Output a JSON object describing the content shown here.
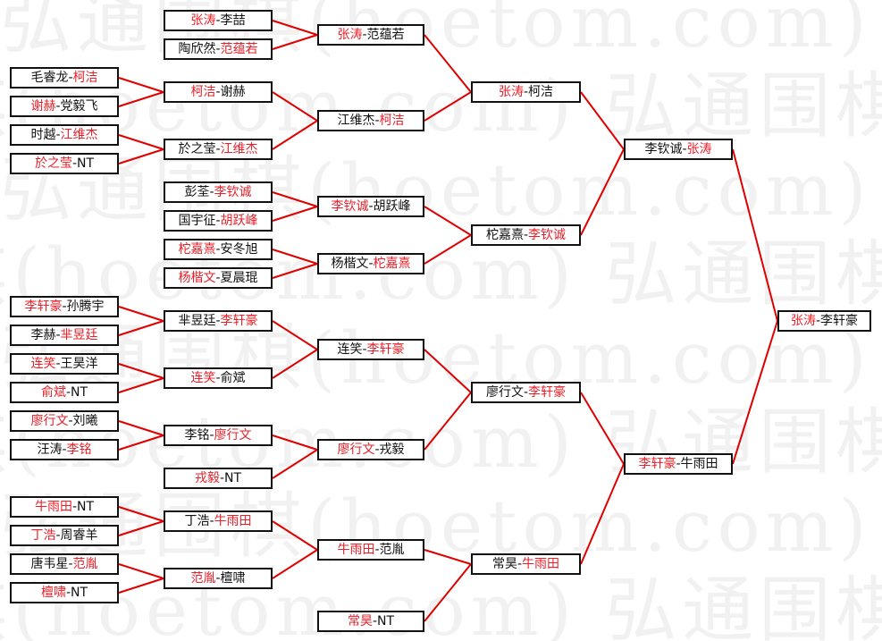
{
  "watermark": "弘通围棋(hoetom.com)",
  "colors": {
    "winner": "#e8202a",
    "loser": "#111111",
    "line": "#e00000"
  },
  "separator": "-",
  "rounds": [
    {
      "matches": [
        {
          "players": [
            {
              "name": "毛睿龙",
              "winner": false
            },
            {
              "name": "柯洁",
              "winner": true
            }
          ]
        },
        {
          "players": [
            {
              "name": "谢赫",
              "winner": true
            },
            {
              "name": "党毅飞",
              "winner": false
            }
          ]
        },
        {
          "players": [
            {
              "name": "时越",
              "winner": false
            },
            {
              "name": "江维杰",
              "winner": true
            }
          ]
        },
        {
          "players": [
            {
              "name": "於之莹",
              "winner": true
            },
            {
              "name": "NT",
              "winner": false
            }
          ]
        },
        {
          "players": [
            {
              "name": "李轩豪",
              "winner": true
            },
            {
              "name": "孙腾宇",
              "winner": false
            }
          ]
        },
        {
          "players": [
            {
              "name": "李赫",
              "winner": false
            },
            {
              "name": "芈昱廷",
              "winner": true
            }
          ]
        },
        {
          "players": [
            {
              "name": "连笑",
              "winner": true
            },
            {
              "name": "王昊洋",
              "winner": false
            }
          ]
        },
        {
          "players": [
            {
              "name": "俞斌",
              "winner": true
            },
            {
              "name": "NT",
              "winner": false
            }
          ]
        },
        {
          "players": [
            {
              "name": "廖行文",
              "winner": true
            },
            {
              "name": "刘曦",
              "winner": false
            }
          ]
        },
        {
          "players": [
            {
              "name": "汪涛",
              "winner": false
            },
            {
              "name": "李铭",
              "winner": true
            }
          ]
        },
        {
          "players": [
            {
              "name": "牛雨田",
              "winner": true
            },
            {
              "name": "NT",
              "winner": false
            }
          ]
        },
        {
          "players": [
            {
              "name": "丁浩",
              "winner": true
            },
            {
              "name": "周睿羊",
              "winner": false
            }
          ]
        },
        {
          "players": [
            {
              "name": "唐韦星",
              "winner": false
            },
            {
              "name": "范胤",
              "winner": true
            }
          ]
        },
        {
          "players": [
            {
              "name": "檀啸",
              "winner": true
            },
            {
              "name": "NT",
              "winner": false
            }
          ]
        }
      ]
    },
    {
      "matches": [
        {
          "players": [
            {
              "name": "张涛",
              "winner": true
            },
            {
              "name": "李喆",
              "winner": false
            }
          ]
        },
        {
          "players": [
            {
              "name": "陶欣然",
              "winner": false
            },
            {
              "name": "范蕴若",
              "winner": true
            }
          ]
        },
        {
          "players": [
            {
              "name": "柯洁",
              "winner": true
            },
            {
              "name": "谢赫",
              "winner": false
            }
          ]
        },
        {
          "players": [
            {
              "name": "於之莹",
              "winner": false
            },
            {
              "name": "江维杰",
              "winner": true
            }
          ]
        },
        {
          "players": [
            {
              "name": "彭荃",
              "winner": false
            },
            {
              "name": "李钦诚",
              "winner": true
            }
          ]
        },
        {
          "players": [
            {
              "name": "国宇征",
              "winner": false
            },
            {
              "name": "胡跃峰",
              "winner": true
            }
          ]
        },
        {
          "players": [
            {
              "name": "柁嘉熹",
              "winner": true
            },
            {
              "name": "安冬旭",
              "winner": false
            }
          ]
        },
        {
          "players": [
            {
              "name": "杨楷文",
              "winner": true
            },
            {
              "name": "夏晨琨",
              "winner": false
            }
          ]
        },
        {
          "players": [
            {
              "name": "芈昱廷",
              "winner": false
            },
            {
              "name": "李轩豪",
              "winner": true
            }
          ]
        },
        {
          "players": [
            {
              "name": "连笑",
              "winner": true
            },
            {
              "name": "俞斌",
              "winner": false
            }
          ]
        },
        {
          "players": [
            {
              "name": "李铭",
              "winner": false
            },
            {
              "name": "廖行文",
              "winner": true
            }
          ]
        },
        {
          "players": [
            {
              "name": "戎毅",
              "winner": true
            },
            {
              "name": "NT",
              "winner": false
            }
          ]
        },
        {
          "players": [
            {
              "name": "丁浩",
              "winner": false
            },
            {
              "name": "牛雨田",
              "winner": true
            }
          ]
        },
        {
          "players": [
            {
              "name": "范胤",
              "winner": true
            },
            {
              "name": "檀啸",
              "winner": false
            }
          ]
        }
      ]
    },
    {
      "matches": [
        {
          "players": [
            {
              "name": "张涛",
              "winner": true
            },
            {
              "name": "范蕴若",
              "winner": false
            }
          ]
        },
        {
          "players": [
            {
              "name": "江维杰",
              "winner": false
            },
            {
              "name": "柯洁",
              "winner": true
            }
          ]
        },
        {
          "players": [
            {
              "name": "李钦诚",
              "winner": true
            },
            {
              "name": "胡跃峰",
              "winner": false
            }
          ]
        },
        {
          "players": [
            {
              "name": "杨楷文",
              "winner": false
            },
            {
              "name": "柁嘉熹",
              "winner": true
            }
          ]
        },
        {
          "players": [
            {
              "name": "连笑",
              "winner": false
            },
            {
              "name": "李轩豪",
              "winner": true
            }
          ]
        },
        {
          "players": [
            {
              "name": "廖行文",
              "winner": true
            },
            {
              "name": "戎毅",
              "winner": false
            }
          ]
        },
        {
          "players": [
            {
              "name": "牛雨田",
              "winner": true
            },
            {
              "name": "范胤",
              "winner": false
            }
          ]
        },
        {
          "players": [
            {
              "name": "常昊",
              "winner": true
            },
            {
              "name": "NT",
              "winner": false
            }
          ]
        }
      ]
    },
    {
      "matches": [
        {
          "players": [
            {
              "name": "张涛",
              "winner": true
            },
            {
              "name": "柯洁",
              "winner": false
            }
          ]
        },
        {
          "players": [
            {
              "name": "柁嘉熹",
              "winner": false
            },
            {
              "name": "李钦诚",
              "winner": true
            }
          ]
        },
        {
          "players": [
            {
              "name": "廖行文",
              "winner": false
            },
            {
              "name": "李轩豪",
              "winner": true
            }
          ]
        },
        {
          "players": [
            {
              "name": "常昊",
              "winner": false
            },
            {
              "name": "牛雨田",
              "winner": true
            }
          ]
        }
      ]
    },
    {
      "matches": [
        {
          "players": [
            {
              "name": "李钦诚",
              "winner": false
            },
            {
              "name": "张涛",
              "winner": true
            }
          ]
        },
        {
          "players": [
            {
              "name": "李轩豪",
              "winner": true
            },
            {
              "name": "牛雨田",
              "winner": false
            }
          ]
        }
      ]
    },
    {
      "matches": [
        {
          "players": [
            {
              "name": "张涛",
              "winner": true
            },
            {
              "name": "李轩豪",
              "winner": false
            }
          ]
        }
      ]
    }
  ]
}
